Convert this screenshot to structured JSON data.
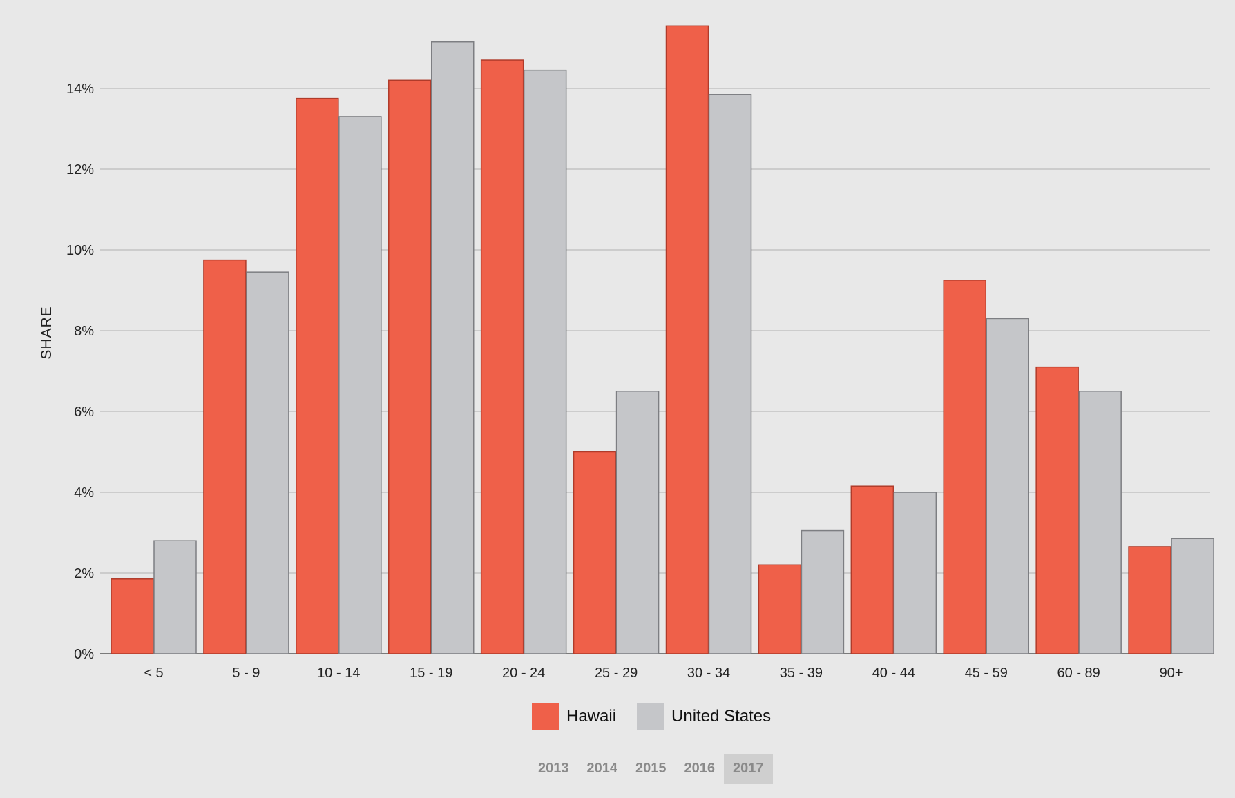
{
  "chart_data": {
    "type": "bar",
    "ylabel": "SHARE",
    "ylim": [
      0,
      16
    ],
    "yticks": [
      "0%",
      "2%",
      "4%",
      "6%",
      "8%",
      "10%",
      "12%",
      "14%"
    ],
    "ytick_values": [
      0,
      2,
      4,
      6,
      8,
      10,
      12,
      14
    ],
    "categories": [
      "< 5",
      "5 - 9",
      "10 - 14",
      "15 - 19",
      "20 - 24",
      "25 - 29",
      "30 - 34",
      "35 - 39",
      "40 - 44",
      "45 - 59",
      "60 - 89",
      "90+"
    ],
    "series": [
      {
        "name": "Hawaii",
        "color": "#ef6049",
        "values": [
          1.85,
          9.75,
          13.75,
          14.2,
          14.7,
          5.0,
          15.55,
          2.2,
          4.15,
          9.25,
          7.1,
          2.65
        ]
      },
      {
        "name": "United States",
        "color": "#c5c6c9",
        "values": [
          2.8,
          9.45,
          13.3,
          15.15,
          14.45,
          6.5,
          13.85,
          3.05,
          4.0,
          8.3,
          6.5,
          2.85
        ]
      }
    ],
    "grid": true,
    "legend_position": "bottom-center"
  },
  "legend": {
    "items": [
      {
        "label": "Hawaii",
        "color": "#ef6049"
      },
      {
        "label": "United States",
        "color": "#c5c6c9"
      }
    ]
  },
  "years": {
    "items": [
      "2013",
      "2014",
      "2015",
      "2016",
      "2017"
    ],
    "selected": "2017"
  }
}
